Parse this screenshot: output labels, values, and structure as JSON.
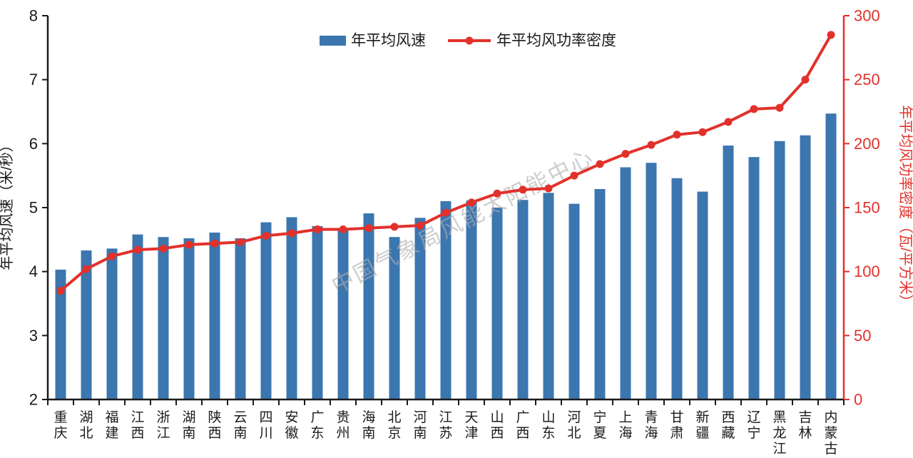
{
  "chart_data": {
    "type": "bar+line",
    "title": "",
    "categories": [
      "重庆",
      "湖北",
      "福建",
      "江西",
      "浙江",
      "湖南",
      "陕西",
      "云南",
      "四川",
      "安徽",
      "广东",
      "贵州",
      "海南",
      "北京",
      "河南",
      "江苏",
      "天津",
      "山西",
      "广西",
      "山东",
      "河北",
      "宁夏",
      "上海",
      "青海",
      "甘肃",
      "新疆",
      "西藏",
      "辽宁",
      "黑龙江",
      "吉林",
      "内蒙古"
    ],
    "series": [
      {
        "name": "年平均风速",
        "type": "bar",
        "axis": "left",
        "color": "#3B76AF",
        "values": [
          4.03,
          4.33,
          4.36,
          4.58,
          4.54,
          4.52,
          4.61,
          4.52,
          4.77,
          4.85,
          4.71,
          4.67,
          4.91,
          4.54,
          4.84,
          5.1,
          5.11,
          5.0,
          5.12,
          5.23,
          5.06,
          5.29,
          5.63,
          5.7,
          5.46,
          5.25,
          5.97,
          5.79,
          6.04,
          6.13,
          6.47
        ]
      },
      {
        "name": "年平均风功率密度",
        "type": "line",
        "axis": "right",
        "color": "#E2312B",
        "values": [
          85,
          102,
          112,
          117,
          118,
          121,
          122,
          123,
          128,
          130,
          133,
          133,
          134,
          135,
          136,
          146,
          154,
          161,
          164,
          165,
          175,
          184,
          192,
          199,
          207,
          209,
          217,
          227,
          228,
          250,
          285
        ]
      }
    ],
    "left_axis": {
      "label": "年平均风速（米/秒）",
      "min": 2,
      "max": 8,
      "ticks": [
        2,
        3,
        4,
        5,
        6,
        7,
        8
      ],
      "color": "#1A1A1A"
    },
    "right_axis": {
      "label": "年平均风功率密度（瓦/平方米）",
      "min": 0,
      "max": 300,
      "ticks": [
        0,
        50,
        100,
        150,
        200,
        250,
        300
      ],
      "color": "#E2312B"
    },
    "legend": {
      "position": "top-center",
      "items": [
        {
          "label": "年平均风速",
          "marker": "bar-swatch",
          "color": "#3B76AF"
        },
        {
          "label": "年平均风功率密度",
          "marker": "line-dot",
          "color": "#E2312B"
        }
      ]
    },
    "watermark": "中国气象局风能太阳能中心",
    "grid": false,
    "colors": {
      "bar": "#3B76AF",
      "line": "#E2312B",
      "axis_black": "#1A1A1A",
      "watermark_gray": "#ADADAD",
      "background": "#FFFFFF"
    }
  }
}
